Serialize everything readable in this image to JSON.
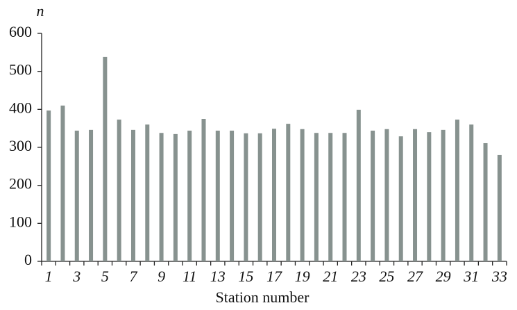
{
  "chart_data": {
    "type": "bar",
    "y_label": "n",
    "x_label": "Station number",
    "categories": [
      "1",
      null,
      "3",
      null,
      "5",
      null,
      "7",
      null,
      "9",
      null,
      "11",
      null,
      "13",
      null,
      "15",
      null,
      "17",
      null,
      "19",
      null,
      "21",
      null,
      "23",
      null,
      "25",
      null,
      "27",
      null,
      "29",
      null,
      "31",
      null,
      "33"
    ],
    "values": [
      397,
      410,
      344,
      346,
      538,
      373,
      346,
      360,
      338,
      335,
      344,
      375,
      344,
      344,
      337,
      337,
      349,
      362,
      348,
      338,
      338,
      338,
      399,
      344,
      348,
      329,
      348,
      340,
      346,
      373,
      360,
      311,
      280
    ],
    "color": "#87928f",
    "ylim": [
      0,
      600
    ],
    "yticks": [
      0,
      100,
      200,
      300,
      400,
      500,
      600
    ],
    "grid": false
  }
}
